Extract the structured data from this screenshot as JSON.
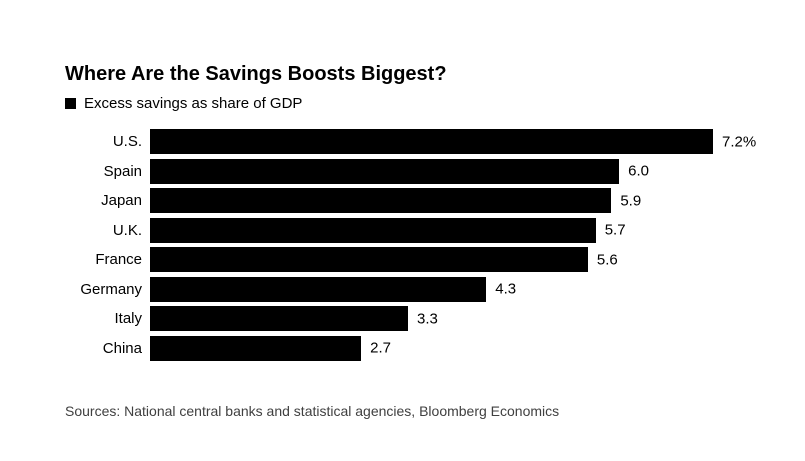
{
  "chart_data": {
    "type": "bar",
    "orientation": "horizontal",
    "title": "Where Are the Savings Boosts Biggest?",
    "legend_label": "Excess savings as share of GDP",
    "legend_position": "top-left",
    "categories": [
      "U.S.",
      "Spain",
      "Japan",
      "U.K.",
      "France",
      "Germany",
      "Italy",
      "China"
    ],
    "values": [
      7.2,
      6.0,
      5.9,
      5.7,
      5.6,
      4.3,
      3.3,
      2.7
    ],
    "value_labels": [
      "7.2%",
      "6.0",
      "5.9",
      "5.7",
      "5.6",
      "4.3",
      "3.3",
      "2.7"
    ],
    "xlabel": "",
    "ylabel": "",
    "xlim": [
      0,
      7.2
    ],
    "grid": false,
    "source": "Sources: National central banks and statistical agencies, Bloomberg Economics"
  },
  "colors": {
    "bar": "#000000",
    "title_text": "#000000",
    "label_text": "#000000",
    "source_text": "#404040",
    "background": "#ffffff"
  }
}
